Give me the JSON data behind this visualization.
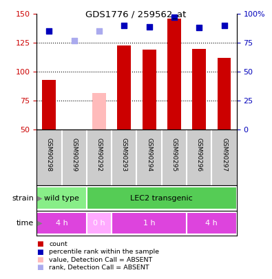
{
  "title": "GDS1776 / 259562_at",
  "samples": [
    "GSM90298",
    "GSM90299",
    "GSM90292",
    "GSM90293",
    "GSM90294",
    "GSM90295",
    "GSM90296",
    "GSM90297"
  ],
  "count_values": [
    93,
    null,
    null,
    123,
    119,
    146,
    120,
    112
  ],
  "count_absent_values": [
    null,
    null,
    82,
    null,
    null,
    null,
    null,
    null
  ],
  "rank_values": [
    85,
    null,
    null,
    90,
    89,
    97,
    88,
    90
  ],
  "rank_absent_values": [
    null,
    77,
    85,
    null,
    null,
    null,
    null,
    null
  ],
  "absent_flags": [
    false,
    true,
    true,
    false,
    false,
    false,
    false,
    false
  ],
  "ylim_left": [
    50,
    150
  ],
  "ylim_right": [
    0,
    100
  ],
  "yticks_left": [
    50,
    75,
    100,
    125,
    150
  ],
  "yticks_right": [
    0,
    25,
    50,
    75,
    100
  ],
  "ytick_labels_right": [
    "0",
    "25",
    "50",
    "75",
    "100%"
  ],
  "strain_groups": [
    {
      "label": "wild type",
      "start": 0,
      "end": 2,
      "color": "#88ee88"
    },
    {
      "label": "LEC2 transgenic",
      "start": 2,
      "end": 8,
      "color": "#55cc55"
    }
  ],
  "time_groups": [
    {
      "label": "4 h",
      "start": 0,
      "end": 2,
      "color": "#dd44dd"
    },
    {
      "label": "0 h",
      "start": 2,
      "end": 3,
      "color": "#ffaaff"
    },
    {
      "label": "1 h",
      "start": 3,
      "end": 6,
      "color": "#dd44dd"
    },
    {
      "label": "4 h",
      "start": 6,
      "end": 8,
      "color": "#dd44dd"
    }
  ],
  "bar_color_present": "#cc0000",
  "bar_color_absent": "#ffbbbb",
  "rank_color_present": "#0000bb",
  "rank_color_absent": "#aaaaee",
  "bar_width": 0.55,
  "rank_marker_size": 28,
  "legend_items": [
    {
      "label": "count",
      "color": "#cc0000"
    },
    {
      "label": "percentile rank within the sample",
      "color": "#0000bb"
    },
    {
      "label": "value, Detection Call = ABSENT",
      "color": "#ffbbbb"
    },
    {
      "label": "rank, Detection Call = ABSENT",
      "color": "#aaaaee"
    }
  ],
  "background_color": "#ffffff",
  "plot_bg_color": "#ffffff",
  "left_tick_color": "#cc0000",
  "right_tick_color": "#0000bb",
  "sample_bg_color": "#cccccc",
  "sample_divider_color": "#ffffff"
}
